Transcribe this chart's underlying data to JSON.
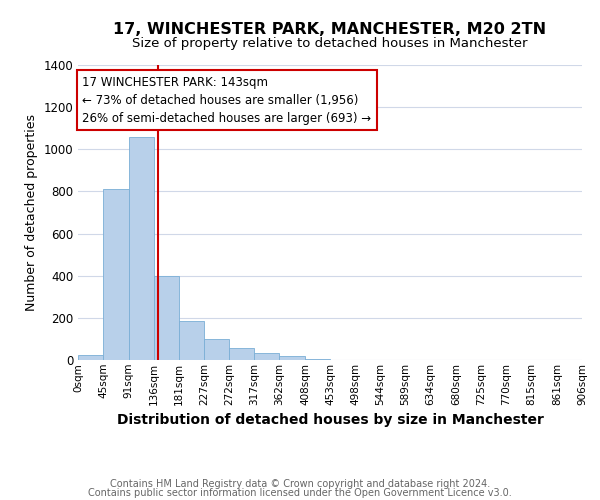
{
  "title": "17, WINCHESTER PARK, MANCHESTER, M20 2TN",
  "subtitle": "Size of property relative to detached houses in Manchester",
  "xlabel": "Distribution of detached houses by size in Manchester",
  "ylabel": "Number of detached properties",
  "footnote1": "Contains HM Land Registry data © Crown copyright and database right 2024.",
  "footnote2": "Contains public sector information licensed under the Open Government Licence v3.0.",
  "bar_edges": [
    0,
    45,
    91,
    136,
    181,
    227,
    272,
    317,
    362,
    408,
    453,
    498,
    544,
    589,
    634,
    680,
    725,
    770,
    815,
    861,
    906
  ],
  "bar_heights": [
    25,
    810,
    1060,
    400,
    185,
    100,
    55,
    35,
    20,
    5,
    0,
    0,
    0,
    0,
    0,
    0,
    0,
    0,
    0,
    0
  ],
  "tick_labels": [
    "0sqm",
    "45sqm",
    "91sqm",
    "136sqm",
    "181sqm",
    "227sqm",
    "272sqm",
    "317sqm",
    "362sqm",
    "408sqm",
    "453sqm",
    "498sqm",
    "544sqm",
    "589sqm",
    "634sqm",
    "680sqm",
    "725sqm",
    "770sqm",
    "815sqm",
    "861sqm",
    "906sqm"
  ],
  "bar_color": "#b8d0ea",
  "bar_edgecolor": "#7aaed6",
  "vline_x": 143,
  "vline_color": "#cc0000",
  "annotation_text": "17 WINCHESTER PARK: 143sqm\n← 73% of detached houses are smaller (1,956)\n26% of semi-detached houses are larger (693) →",
  "annotation_box_edgecolor": "#cc0000",
  "annotation_box_facecolor": "#ffffff",
  "ylim": [
    0,
    1400
  ],
  "xlim": [
    0,
    906
  ],
  "title_fontsize": 11.5,
  "subtitle_fontsize": 9.5,
  "ylabel_fontsize": 9,
  "xlabel_fontsize": 10,
  "tick_fontsize": 7.5,
  "annotation_fontsize": 8.5,
  "footnote_fontsize": 7,
  "grid_color": "#d0d8e8",
  "background_color": "#ffffff"
}
